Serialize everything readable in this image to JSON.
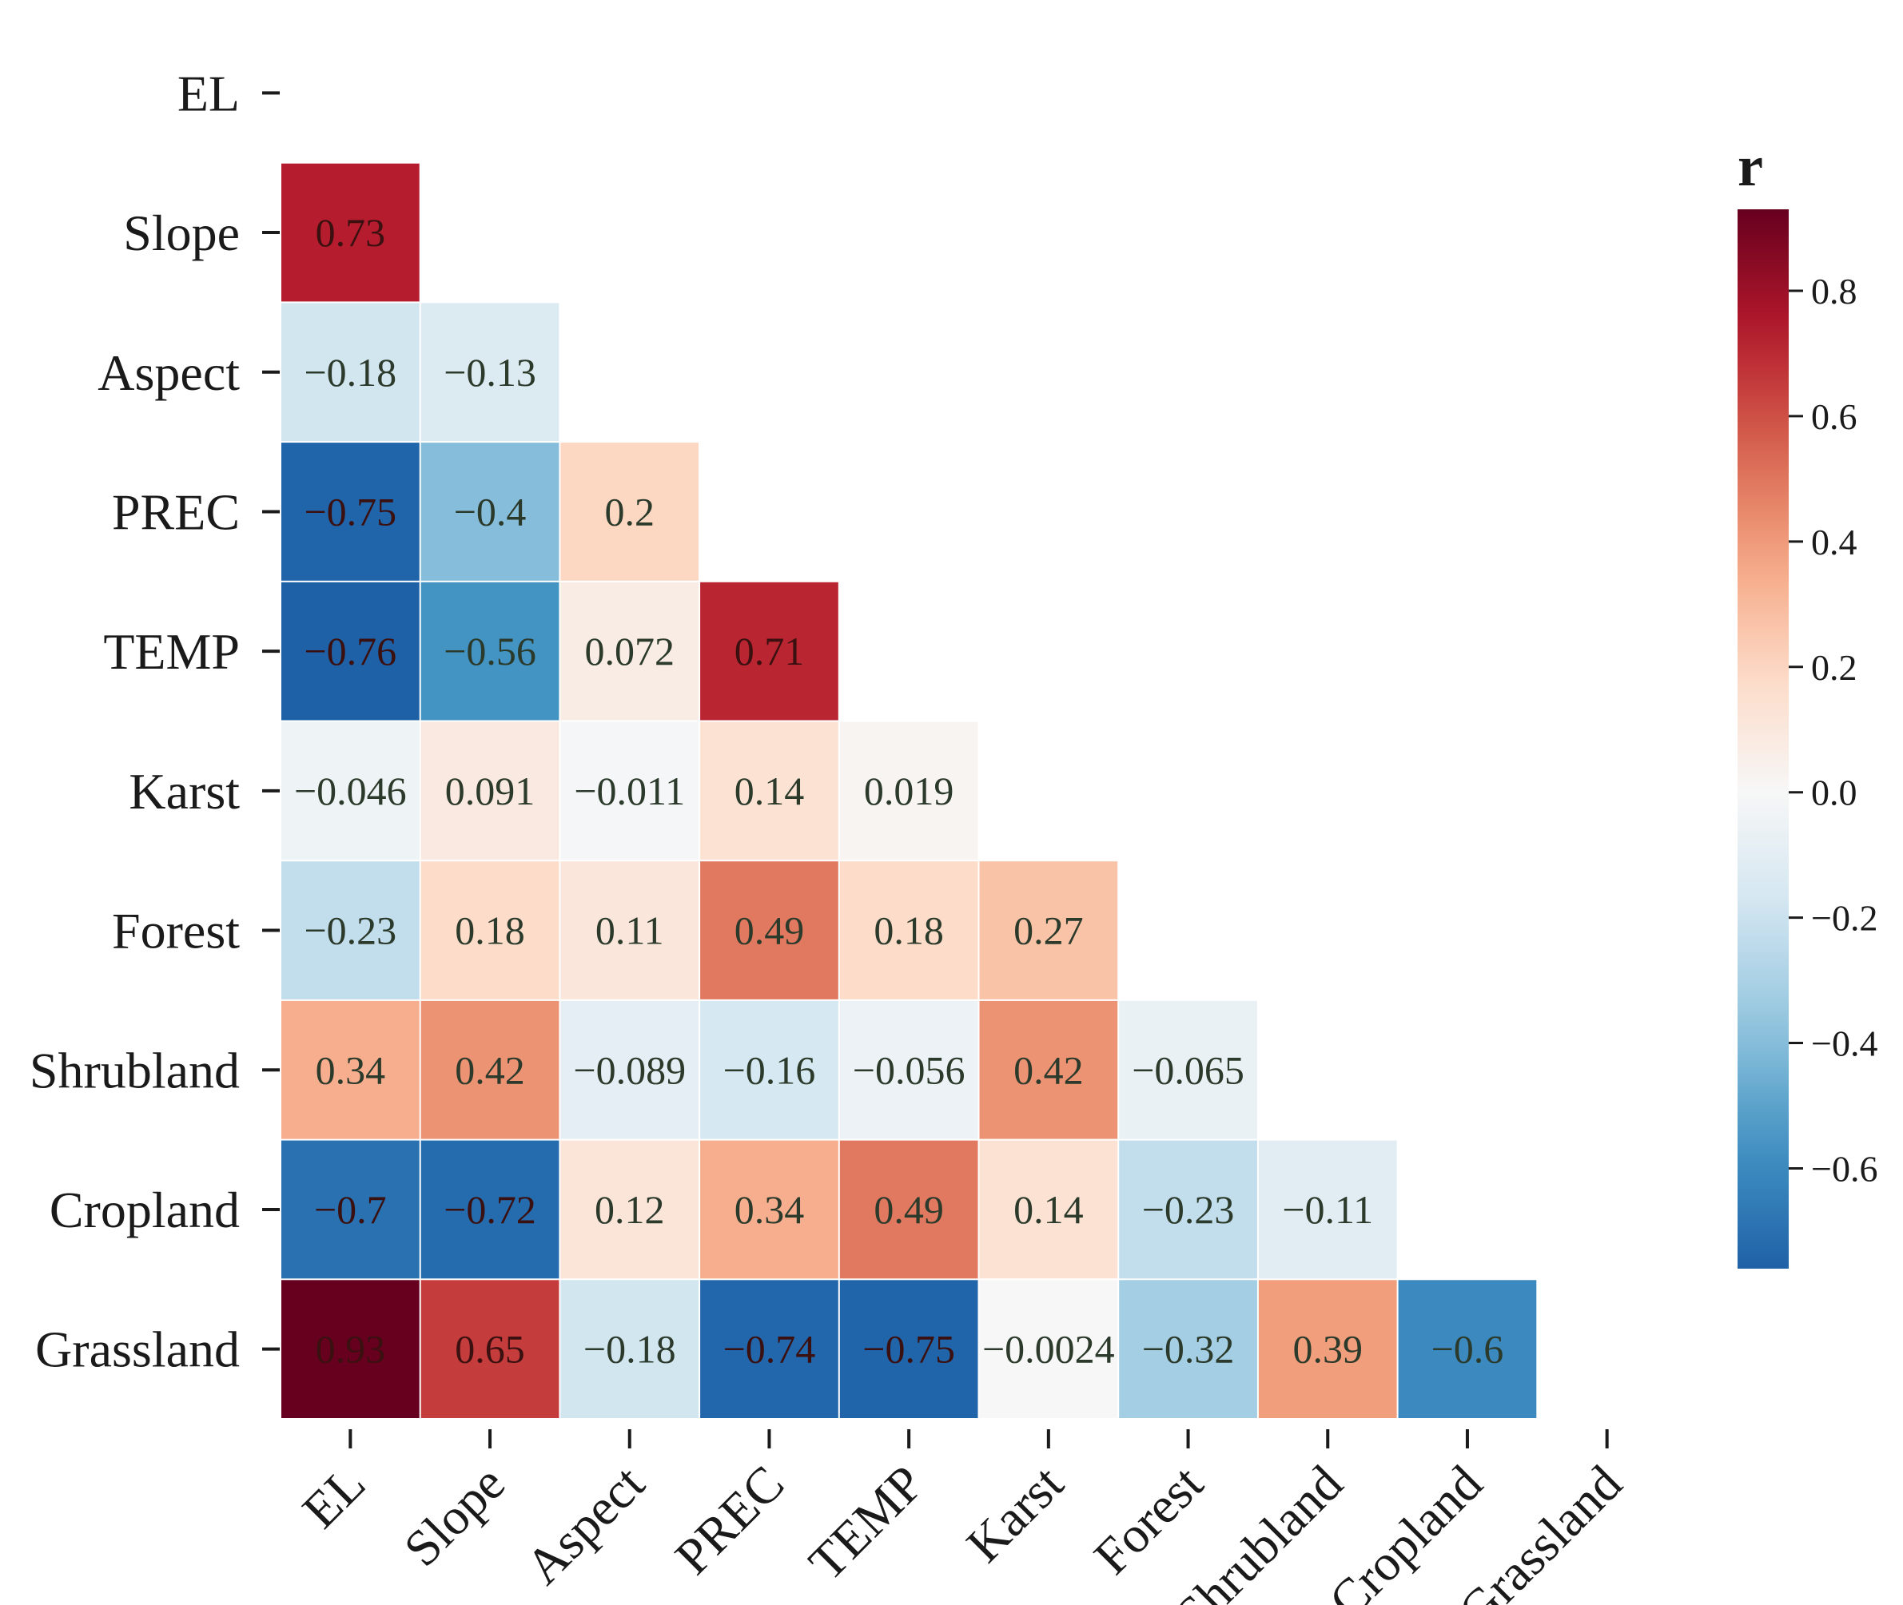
{
  "chart_data": {
    "type": "heatmap",
    "title": "",
    "variables": [
      "EL",
      "Slope",
      "Aspect",
      "PREC",
      "TEMP",
      "Karst",
      "Forest",
      "Shrubland",
      "Cropland",
      "Grassland"
    ],
    "rows": [
      {
        "name": "EL",
        "values": []
      },
      {
        "name": "Slope",
        "values": [
          0.73
        ]
      },
      {
        "name": "Aspect",
        "values": [
          -0.18,
          -0.13
        ]
      },
      {
        "name": "PREC",
        "values": [
          -0.75,
          -0.4,
          0.2
        ]
      },
      {
        "name": "TEMP",
        "values": [
          -0.76,
          -0.56,
          0.072,
          0.71
        ]
      },
      {
        "name": "Karst",
        "values": [
          -0.046,
          0.091,
          -0.011,
          0.14,
          0.019
        ]
      },
      {
        "name": "Forest",
        "values": [
          -0.23,
          0.18,
          0.11,
          0.49,
          0.18,
          0.27
        ]
      },
      {
        "name": "Shrubland",
        "values": [
          0.34,
          0.42,
          -0.089,
          -0.16,
          -0.056,
          0.42,
          -0.065
        ]
      },
      {
        "name": "Cropland",
        "values": [
          -0.7,
          -0.72,
          0.12,
          0.34,
          0.49,
          0.14,
          -0.23,
          -0.11
        ]
      },
      {
        "name": "Grassland",
        "values": [
          0.93,
          0.65,
          -0.18,
          -0.74,
          -0.75,
          -0.0024,
          -0.32,
          0.39,
          -0.6
        ]
      }
    ],
    "cell_labels": [
      [],
      [
        "0.73"
      ],
      [
        "−0.18",
        "−0.13"
      ],
      [
        "−0.75",
        "−0.4",
        "0.2"
      ],
      [
        "−0.76",
        "−0.56",
        "0.072",
        "0.71"
      ],
      [
        "−0.046",
        "0.091",
        "−0.011",
        "0.14",
        "0.019"
      ],
      [
        "−0.23",
        "0.18",
        "0.11",
        "0.49",
        "0.18",
        "0.27"
      ],
      [
        "0.34",
        "0.42",
        "−0.089",
        "−0.16",
        "−0.056",
        "0.42",
        "−0.065"
      ],
      [
        "−0.7",
        "−0.72",
        "0.12",
        "0.34",
        "0.49",
        "0.14",
        "−0.23",
        "−0.11"
      ],
      [
        "0.93",
        "0.65",
        "−0.18",
        "−0.74",
        "−0.75",
        "−0.0024",
        "−0.32",
        "0.39",
        "−0.6"
      ]
    ],
    "colorbar": {
      "title": "r",
      "range": [
        -0.76,
        0.93
      ],
      "ticks": [
        0.8,
        0.6,
        0.4,
        0.2,
        0.0,
        -0.2,
        -0.4,
        -0.6
      ],
      "tick_labels": [
        "0.8",
        "0.6",
        "0.4",
        "0.2",
        "0.0",
        "−0.2",
        "−0.4",
        "−0.6"
      ],
      "colormap": "RdBu_r"
    },
    "xlabel": "",
    "ylabel": ""
  }
}
